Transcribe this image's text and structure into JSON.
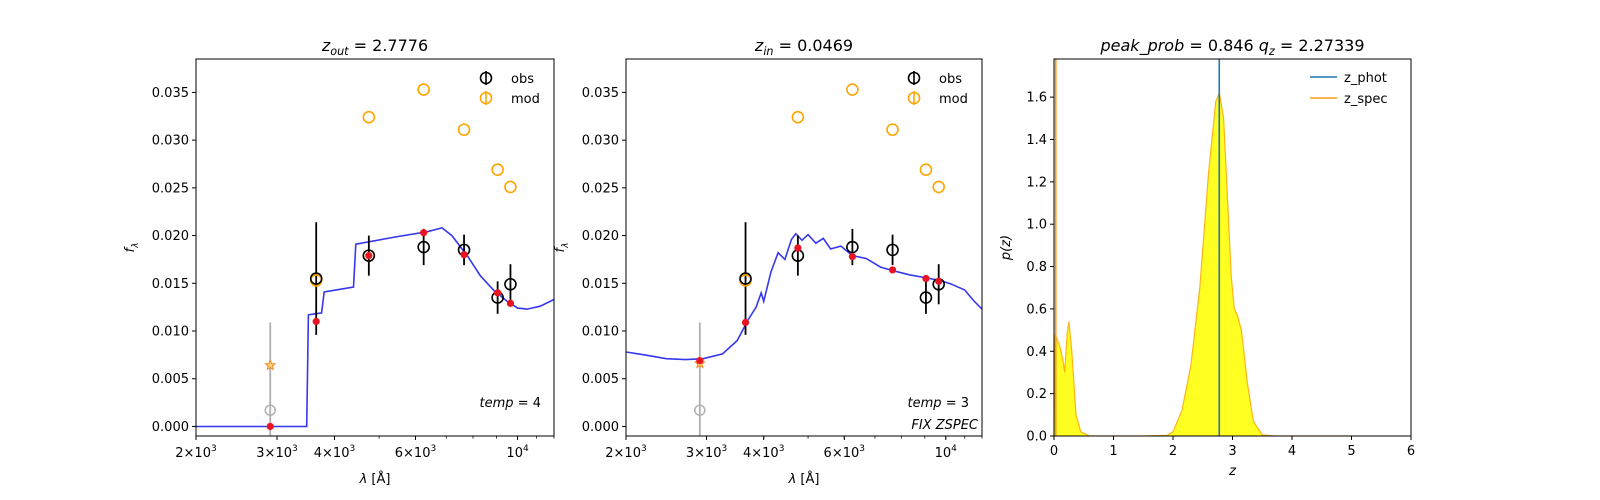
{
  "chart_data": [
    {
      "type": "scatter",
      "title": "z_out = 2.7776",
      "title_parts": {
        "var": "z",
        "sub": "out",
        "value": "= 2.7776"
      },
      "ylabel": "f_λ",
      "ylabel_parts": {
        "var": "f",
        "sub": "λ"
      },
      "xlabel": "λ [Å]",
      "xscale": "log",
      "xlim": [
        2000,
        12000
      ],
      "ylim": [
        -0.001,
        0.0385
      ],
      "xticks": [
        {
          "value": 2000,
          "label": "2×10³"
        },
        {
          "value": 3000,
          "label": "3×10³"
        },
        {
          "value": 4000,
          "label": "4×10³"
        },
        {
          "value": 6000,
          "label": "6×10³"
        },
        {
          "value": 10000,
          "label": "10⁴"
        }
      ],
      "yticks": [
        "0.000",
        "0.005",
        "0.010",
        "0.015",
        "0.020",
        "0.025",
        "0.030",
        "0.035"
      ],
      "legend": {
        "position": "top-right",
        "entries": [
          "obs",
          "mod"
        ]
      },
      "annotation": "temp = 4",
      "observed": [
        {
          "x": 3650,
          "y": 0.0155,
          "err": 0.0059
        },
        {
          "x": 4750,
          "y": 0.0179,
          "err": 0.0021
        },
        {
          "x": 6250,
          "y": 0.0188,
          "err": 0.0019
        },
        {
          "x": 7650,
          "y": 0.0185,
          "err": 0.0016
        },
        {
          "x": 9050,
          "y": 0.0135,
          "err": 0.0017
        },
        {
          "x": 9650,
          "y": 0.0149,
          "err": 0.0021
        }
      ],
      "observed_faded": [
        {
          "x": 2900,
          "y": 0.0017,
          "err": 0.0092
        }
      ],
      "model_open": [
        {
          "x": 3650,
          "y": 0.0153
        },
        {
          "x": 4750,
          "y": 0.0179
        },
        {
          "x": 4750,
          "y": 0.0324
        },
        {
          "x": 6250,
          "y": 0.0353
        },
        {
          "x": 7650,
          "y": 0.0311
        },
        {
          "x": 9050,
          "y": 0.0269
        },
        {
          "x": 9650,
          "y": 0.0251
        }
      ],
      "model_star": [
        {
          "x": 2900,
          "y": 0.0064
        }
      ],
      "model_red": [
        {
          "x": 2900,
          "y": 0.0
        },
        {
          "x": 3650,
          "y": 0.011
        },
        {
          "x": 4750,
          "y": 0.0179
        },
        {
          "x": 6250,
          "y": 0.0203
        },
        {
          "x": 7650,
          "y": 0.018
        },
        {
          "x": 9050,
          "y": 0.014
        },
        {
          "x": 9650,
          "y": 0.0129
        }
      ],
      "template_curve": [
        [
          2000,
          0.0
        ],
        [
          3150,
          0.0
        ],
        [
          3480,
          0.0
        ],
        [
          3510,
          0.0117
        ],
        [
          3750,
          0.0119
        ],
        [
          3800,
          0.0141
        ],
        [
          4400,
          0.0146
        ],
        [
          4450,
          0.0191
        ],
        [
          5500,
          0.0199
        ],
        [
          6350,
          0.0204
        ],
        [
          6850,
          0.0208
        ],
        [
          7200,
          0.02
        ],
        [
          7800,
          0.0178
        ],
        [
          8300,
          0.0158
        ],
        [
          8900,
          0.0142
        ],
        [
          9500,
          0.0131
        ],
        [
          10000,
          0.0124
        ],
        [
          10500,
          0.0123
        ],
        [
          11200,
          0.0126
        ],
        [
          12000,
          0.0133
        ]
      ]
    },
    {
      "type": "scatter",
      "title": "z_in = 0.0469",
      "title_parts": {
        "var": "z",
        "sub": "in",
        "value": "= 0.0469"
      },
      "ylabel": "f_λ",
      "ylabel_parts": {
        "var": "f",
        "sub": "λ"
      },
      "xlabel": "λ [Å]",
      "xscale": "log",
      "xlim": [
        2000,
        12000
      ],
      "ylim": [
        -0.001,
        0.0385
      ],
      "xticks": [
        {
          "value": 2000,
          "label": "2×10³"
        },
        {
          "value": 3000,
          "label": "3×10³"
        },
        {
          "value": 4000,
          "label": "4×10³"
        },
        {
          "value": 6000,
          "label": "6×10³"
        },
        {
          "value": 10000,
          "label": "10⁴"
        }
      ],
      "yticks": [
        "0.000",
        "0.005",
        "0.010",
        "0.015",
        "0.020",
        "0.025",
        "0.030",
        "0.035"
      ],
      "legend": {
        "position": "top-right",
        "entries": [
          "obs",
          "mod"
        ]
      },
      "annotation": "temp = 3",
      "annotation2": "FIX ZSPEC",
      "observed": [
        {
          "x": 3650,
          "y": 0.0155,
          "err": 0.0059
        },
        {
          "x": 4750,
          "y": 0.0179,
          "err": 0.0021
        },
        {
          "x": 6250,
          "y": 0.0188,
          "err": 0.0019
        },
        {
          "x": 7650,
          "y": 0.0185,
          "err": 0.0016
        },
        {
          "x": 9050,
          "y": 0.0135,
          "err": 0.0017
        },
        {
          "x": 9650,
          "y": 0.0149,
          "err": 0.0021
        }
      ],
      "observed_faded": [
        {
          "x": 2900,
          "y": 0.0017,
          "err": 0.0092
        }
      ],
      "model_open": [
        {
          "x": 3650,
          "y": 0.0153
        },
        {
          "x": 4750,
          "y": 0.0324
        },
        {
          "x": 6250,
          "y": 0.0353
        },
        {
          "x": 7650,
          "y": 0.0311
        },
        {
          "x": 9050,
          "y": 0.0269
        },
        {
          "x": 9650,
          "y": 0.0251
        }
      ],
      "model_star": [
        {
          "x": 2900,
          "y": 0.0066
        }
      ],
      "model_red": [
        {
          "x": 2900,
          "y": 0.0069
        },
        {
          "x": 3650,
          "y": 0.0109
        },
        {
          "x": 4750,
          "y": 0.0187
        },
        {
          "x": 6250,
          "y": 0.0178
        },
        {
          "x": 7650,
          "y": 0.0164
        },
        {
          "x": 9050,
          "y": 0.0155
        },
        {
          "x": 9650,
          "y": 0.0152
        }
      ],
      "template_curve": [
        [
          2000,
          0.0078
        ],
        [
          2200,
          0.0075
        ],
        [
          2450,
          0.0071
        ],
        [
          2700,
          0.007
        ],
        [
          2950,
          0.0071
        ],
        [
          3250,
          0.0076
        ],
        [
          3500,
          0.009
        ],
        [
          3700,
          0.0112
        ],
        [
          3850,
          0.0125
        ],
        [
          3950,
          0.014
        ],
        [
          4000,
          0.0131
        ],
        [
          4150,
          0.0162
        ],
        [
          4300,
          0.0182
        ],
        [
          4450,
          0.0175
        ],
        [
          4600,
          0.0196
        ],
        [
          4700,
          0.0202
        ],
        [
          4850,
          0.0195
        ],
        [
          5000,
          0.0201
        ],
        [
          5200,
          0.0192
        ],
        [
          5400,
          0.0197
        ],
        [
          5600,
          0.0186
        ],
        [
          5900,
          0.0189
        ],
        [
          6250,
          0.0179
        ],
        [
          6700,
          0.0176
        ],
        [
          7200,
          0.0167
        ],
        [
          7700,
          0.0163
        ],
        [
          8300,
          0.0159
        ],
        [
          9000,
          0.0156
        ],
        [
          9700,
          0.0153
        ],
        [
          10300,
          0.0149
        ],
        [
          11000,
          0.0143
        ],
        [
          11500,
          0.0132
        ],
        [
          12000,
          0.0123
        ]
      ]
    },
    {
      "type": "area",
      "title": "peak_prob = 0.846     q_z = 2.27339",
      "title_parts": {
        "peak_var": "peak_prob",
        "peak_value": "= 0.846",
        "q_var": "q",
        "q_sub": "z",
        "q_value": "= 2.27339"
      },
      "xlabel": "z",
      "ylabel": "p(z)",
      "xlim": [
        0,
        6
      ],
      "ylim": [
        0,
        1.78
      ],
      "xticks": [
        "0",
        "1",
        "2",
        "3",
        "4",
        "5",
        "6"
      ],
      "yticks": [
        "0.0",
        "0.2",
        "0.4",
        "0.6",
        "0.8",
        "1.0",
        "1.2",
        "1.4",
        "1.6"
      ],
      "legend": {
        "position": "top-right",
        "entries": [
          "z_phot",
          "z_spec"
        ]
      },
      "z_phot": 2.7776,
      "z_spec": 0.0469,
      "pz_curve": [
        [
          0,
          0
        ],
        [
          0.02,
          0.48
        ],
        [
          0.1,
          0.42
        ],
        [
          0.15,
          0.36
        ],
        [
          0.18,
          0.3
        ],
        [
          0.22,
          0.48
        ],
        [
          0.25,
          0.54
        ],
        [
          0.3,
          0.4
        ],
        [
          0.37,
          0.1
        ],
        [
          0.45,
          0.02
        ],
        [
          0.6,
          0.0
        ],
        [
          1.5,
          0.0
        ],
        [
          1.9,
          0.003
        ],
        [
          2.0,
          0.02
        ],
        [
          2.15,
          0.12
        ],
        [
          2.3,
          0.33
        ],
        [
          2.45,
          0.7
        ],
        [
          2.6,
          1.25
        ],
        [
          2.72,
          1.58
        ],
        [
          2.78,
          1.62
        ],
        [
          2.85,
          1.5
        ],
        [
          2.92,
          1.1
        ],
        [
          2.98,
          0.75
        ],
        [
          3.03,
          0.6
        ],
        [
          3.08,
          0.57
        ],
        [
          3.15,
          0.5
        ],
        [
          3.25,
          0.25
        ],
        [
          3.35,
          0.07
        ],
        [
          3.5,
          0.005
        ],
        [
          3.7,
          0.0
        ],
        [
          5.0,
          0.0
        ]
      ],
      "zspec_peak": 1.78
    }
  ],
  "colors": {
    "observed": "#000000",
    "observed_faded": "#b0b0b0",
    "model": "#ffa500",
    "model_red": "#e8141f",
    "template": "#3737ee",
    "z_phot": "#1f77b4",
    "z_spec": "#ff9a1a",
    "pz_fill": "#ffff22",
    "pz_edge": "#ffb31a"
  }
}
